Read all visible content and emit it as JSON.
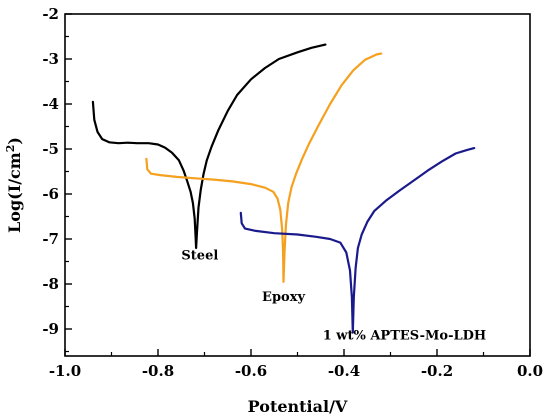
{
  "chart_data": {
    "type": "line",
    "title": "",
    "xlabel": "Potential/V",
    "ylabel_main": "Log(I/cm",
    "ylabel_sup": "2",
    "ylabel_end": ")",
    "xlim": [
      -1.0,
      0.0
    ],
    "ylim": [
      -9.6,
      -2.0
    ],
    "x_ticks": [
      -1.0,
      -0.8,
      -0.6,
      -0.4,
      -0.2,
      0.0
    ],
    "x_tick_labels": [
      "-1.0",
      "-0.8",
      "-0.6",
      "-0.4",
      "-0.2",
      "0.0"
    ],
    "y_ticks": [
      -9,
      -8,
      -7,
      -6,
      -5,
      -4,
      -3,
      -2
    ],
    "y_tick_labels": [
      "-9",
      "-8",
      "-7",
      "-6",
      "-5",
      "-4",
      "-3",
      "-2"
    ],
    "grid": false,
    "series": [
      {
        "name": "Steel",
        "color": "#000000",
        "label_pos": [
          -0.71,
          -7.45
        ],
        "points": [
          [
            -0.94,
            -3.95
          ],
          [
            -0.937,
            -4.35
          ],
          [
            -0.93,
            -4.62
          ],
          [
            -0.92,
            -4.78
          ],
          [
            -0.905,
            -4.85
          ],
          [
            -0.885,
            -4.87
          ],
          [
            -0.865,
            -4.86
          ],
          [
            -0.845,
            -4.87
          ],
          [
            -0.82,
            -4.87
          ],
          [
            -0.8,
            -4.9
          ],
          [
            -0.785,
            -4.97
          ],
          [
            -0.77,
            -5.08
          ],
          [
            -0.755,
            -5.25
          ],
          [
            -0.745,
            -5.48
          ],
          [
            -0.737,
            -5.72
          ],
          [
            -0.73,
            -5.95
          ],
          [
            -0.725,
            -6.2
          ],
          [
            -0.721,
            -6.55
          ],
          [
            -0.719,
            -7.0
          ],
          [
            -0.718,
            -7.2
          ],
          [
            -0.716,
            -6.8
          ],
          [
            -0.713,
            -6.3
          ],
          [
            -0.708,
            -5.9
          ],
          [
            -0.702,
            -5.55
          ],
          [
            -0.695,
            -5.25
          ],
          [
            -0.685,
            -4.95
          ],
          [
            -0.67,
            -4.58
          ],
          [
            -0.65,
            -4.15
          ],
          [
            -0.63,
            -3.8
          ],
          [
            -0.6,
            -3.45
          ],
          [
            -0.57,
            -3.2
          ],
          [
            -0.54,
            -3.0
          ],
          [
            -0.5,
            -2.85
          ],
          [
            -0.47,
            -2.75
          ],
          [
            -0.44,
            -2.68
          ]
        ]
      },
      {
        "name": "Epoxy",
        "color": "#f5a01e",
        "label_pos": [
          -0.53,
          -8.38
        ],
        "points": [
          [
            -0.825,
            -5.22
          ],
          [
            -0.823,
            -5.45
          ],
          [
            -0.815,
            -5.55
          ],
          [
            -0.795,
            -5.58
          ],
          [
            -0.76,
            -5.62
          ],
          [
            -0.72,
            -5.65
          ],
          [
            -0.68,
            -5.68
          ],
          [
            -0.64,
            -5.72
          ],
          [
            -0.6,
            -5.78
          ],
          [
            -0.57,
            -5.86
          ],
          [
            -0.552,
            -5.95
          ],
          [
            -0.543,
            -6.1
          ],
          [
            -0.537,
            -6.35
          ],
          [
            -0.533,
            -6.8
          ],
          [
            -0.531,
            -7.3
          ],
          [
            -0.53,
            -7.95
          ],
          [
            -0.528,
            -7.3
          ],
          [
            -0.525,
            -6.7
          ],
          [
            -0.52,
            -6.2
          ],
          [
            -0.513,
            -5.85
          ],
          [
            -0.503,
            -5.55
          ],
          [
            -0.49,
            -5.22
          ],
          [
            -0.475,
            -4.88
          ],
          [
            -0.455,
            -4.48
          ],
          [
            -0.43,
            -4.0
          ],
          [
            -0.405,
            -3.58
          ],
          [
            -0.38,
            -3.25
          ],
          [
            -0.355,
            -3.02
          ],
          [
            -0.33,
            -2.9
          ],
          [
            -0.32,
            -2.88
          ]
        ]
      },
      {
        "name": "1 wt% APTES-Mo-LDH",
        "color": "#1a1a8c",
        "label_pos": [
          -0.27,
          -9.23
        ],
        "points": [
          [
            -0.622,
            -6.42
          ],
          [
            -0.62,
            -6.65
          ],
          [
            -0.613,
            -6.77
          ],
          [
            -0.59,
            -6.82
          ],
          [
            -0.55,
            -6.87
          ],
          [
            -0.5,
            -6.9
          ],
          [
            -0.46,
            -6.95
          ],
          [
            -0.43,
            -7.0
          ],
          [
            -0.408,
            -7.08
          ],
          [
            -0.395,
            -7.3
          ],
          [
            -0.387,
            -7.7
          ],
          [
            -0.383,
            -8.3
          ],
          [
            -0.381,
            -9.08
          ],
          [
            -0.379,
            -8.3
          ],
          [
            -0.375,
            -7.65
          ],
          [
            -0.37,
            -7.2
          ],
          [
            -0.362,
            -6.9
          ],
          [
            -0.35,
            -6.62
          ],
          [
            -0.335,
            -6.38
          ],
          [
            -0.31,
            -6.15
          ],
          [
            -0.28,
            -5.92
          ],
          [
            -0.25,
            -5.7
          ],
          [
            -0.22,
            -5.48
          ],
          [
            -0.19,
            -5.28
          ],
          [
            -0.16,
            -5.1
          ],
          [
            -0.135,
            -5.02
          ],
          [
            -0.12,
            -4.98
          ]
        ]
      }
    ]
  }
}
